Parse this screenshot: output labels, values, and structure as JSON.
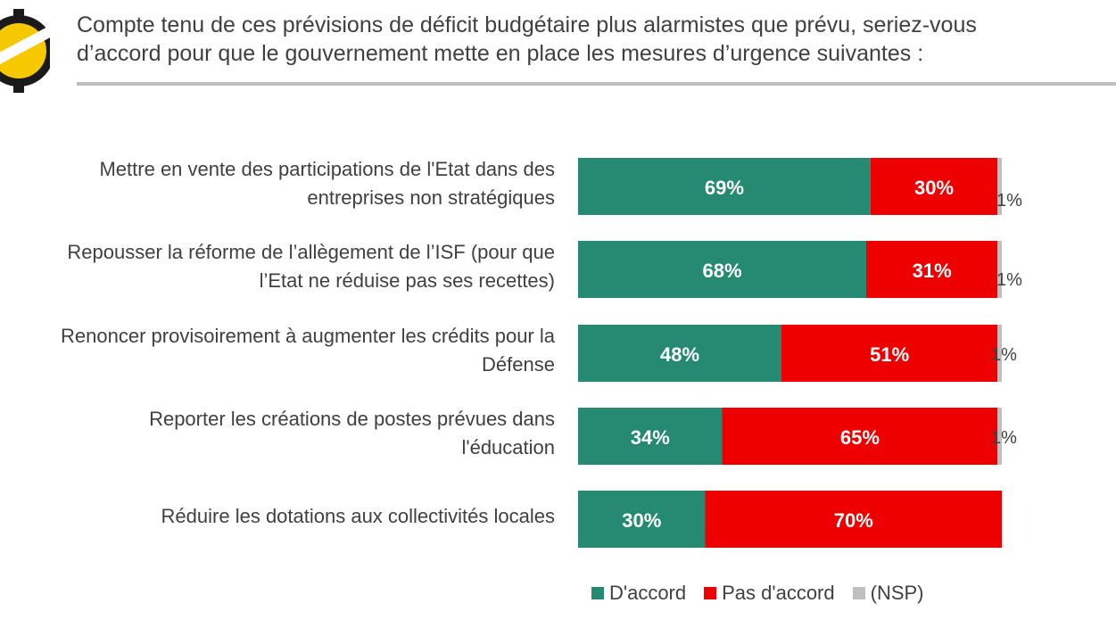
{
  "header": {
    "question_line1": "Compte tenu de ces prévisions de déficit budgétaire plus alarmistes que prévu, seriez-vous",
    "question_line2": "d’accord pour que le gouvernement mette en place les mesures d’urgence suivantes :"
  },
  "colors": {
    "accord": "#268a72",
    "pas_accord": "#ee0000",
    "nsp": "#bfbfbf",
    "logo_yellow": "#f5c800",
    "logo_black": "#1a1a1a"
  },
  "icons": [
    "logo-icon"
  ],
  "chart_data": {
    "type": "bar",
    "orientation": "horizontal",
    "stacked": true,
    "title": "",
    "xlabel": "",
    "ylabel": "",
    "xlim": [
      0,
      100
    ],
    "categories": [
      [
        "Mettre en vente des participations de l'Etat dans des",
        "entreprises non stratégiques"
      ],
      [
        "Repousser la réforme de l’allègement de l’ISF (pour que",
        "l’Etat ne réduise pas ses recettes)"
      ],
      [
        "Renoncer provisoirement à augmenter les crédits pour la",
        "Défense"
      ],
      [
        "Reporter les créations de postes prévues dans",
        "l'éducation"
      ],
      [
        "Réduire les dotations aux collectivités locales"
      ]
    ],
    "series": [
      {
        "name": "D'accord",
        "values": [
          69,
          68,
          48,
          34,
          30
        ],
        "labels": [
          "69%",
          "68%",
          "48%",
          "34%",
          "30%"
        ]
      },
      {
        "name": "Pas d'accord",
        "values": [
          30,
          31,
          51,
          65,
          70
        ],
        "labels": [
          "30%",
          "31%",
          "51%",
          "65%",
          "70%"
        ]
      },
      {
        "name": "(NSP)",
        "values": [
          1,
          1,
          1,
          1,
          0
        ],
        "labels": [
          "1%",
          "1%",
          "1%",
          "1%",
          ""
        ]
      }
    ],
    "legend": {
      "position": "bottom",
      "entries": [
        "D'accord",
        "Pas d'accord",
        "(NSP)"
      ]
    }
  }
}
